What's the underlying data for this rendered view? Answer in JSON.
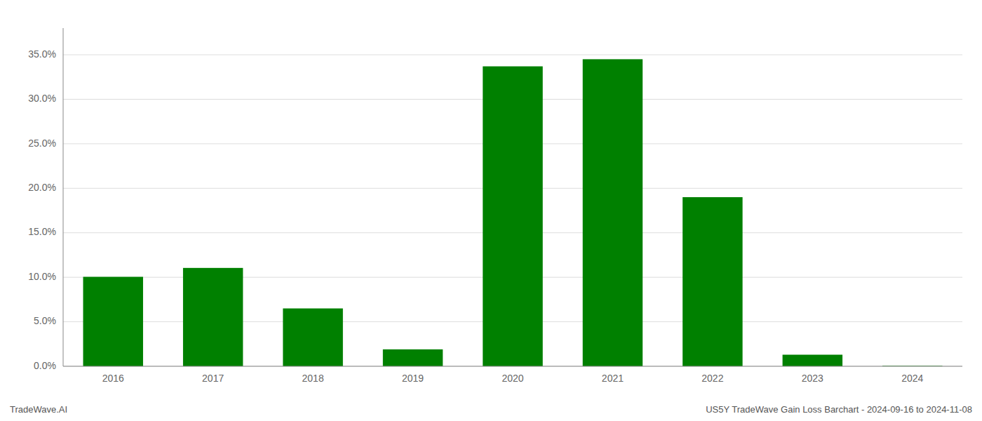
{
  "chart_data": {
    "type": "bar",
    "categories": [
      "2016",
      "2017",
      "2018",
      "2019",
      "2020",
      "2021",
      "2022",
      "2023",
      "2024"
    ],
    "values": [
      0.1005,
      0.1105,
      0.065,
      0.019,
      0.337,
      0.345,
      0.19,
      0.013,
      0.0005
    ],
    "color": "#008000",
    "ylim": [
      0,
      0.38
    ],
    "yticks": [
      {
        "value": 0.0,
        "label": "0.0%"
      },
      {
        "value": 0.05,
        "label": "5.0%"
      },
      {
        "value": 0.1,
        "label": "10.0%"
      },
      {
        "value": 0.15,
        "label": "15.0%"
      },
      {
        "value": 0.2,
        "label": "20.0%"
      },
      {
        "value": 0.25,
        "label": "25.0%"
      },
      {
        "value": 0.3,
        "label": "30.0%"
      },
      {
        "value": 0.35,
        "label": "35.0%"
      }
    ],
    "grid": true,
    "annotations": [
      "TradeWave.AI",
      "US5Y TradeWave Gain Loss Barchart - 2024-09-16 to 2024-11-08"
    ]
  }
}
